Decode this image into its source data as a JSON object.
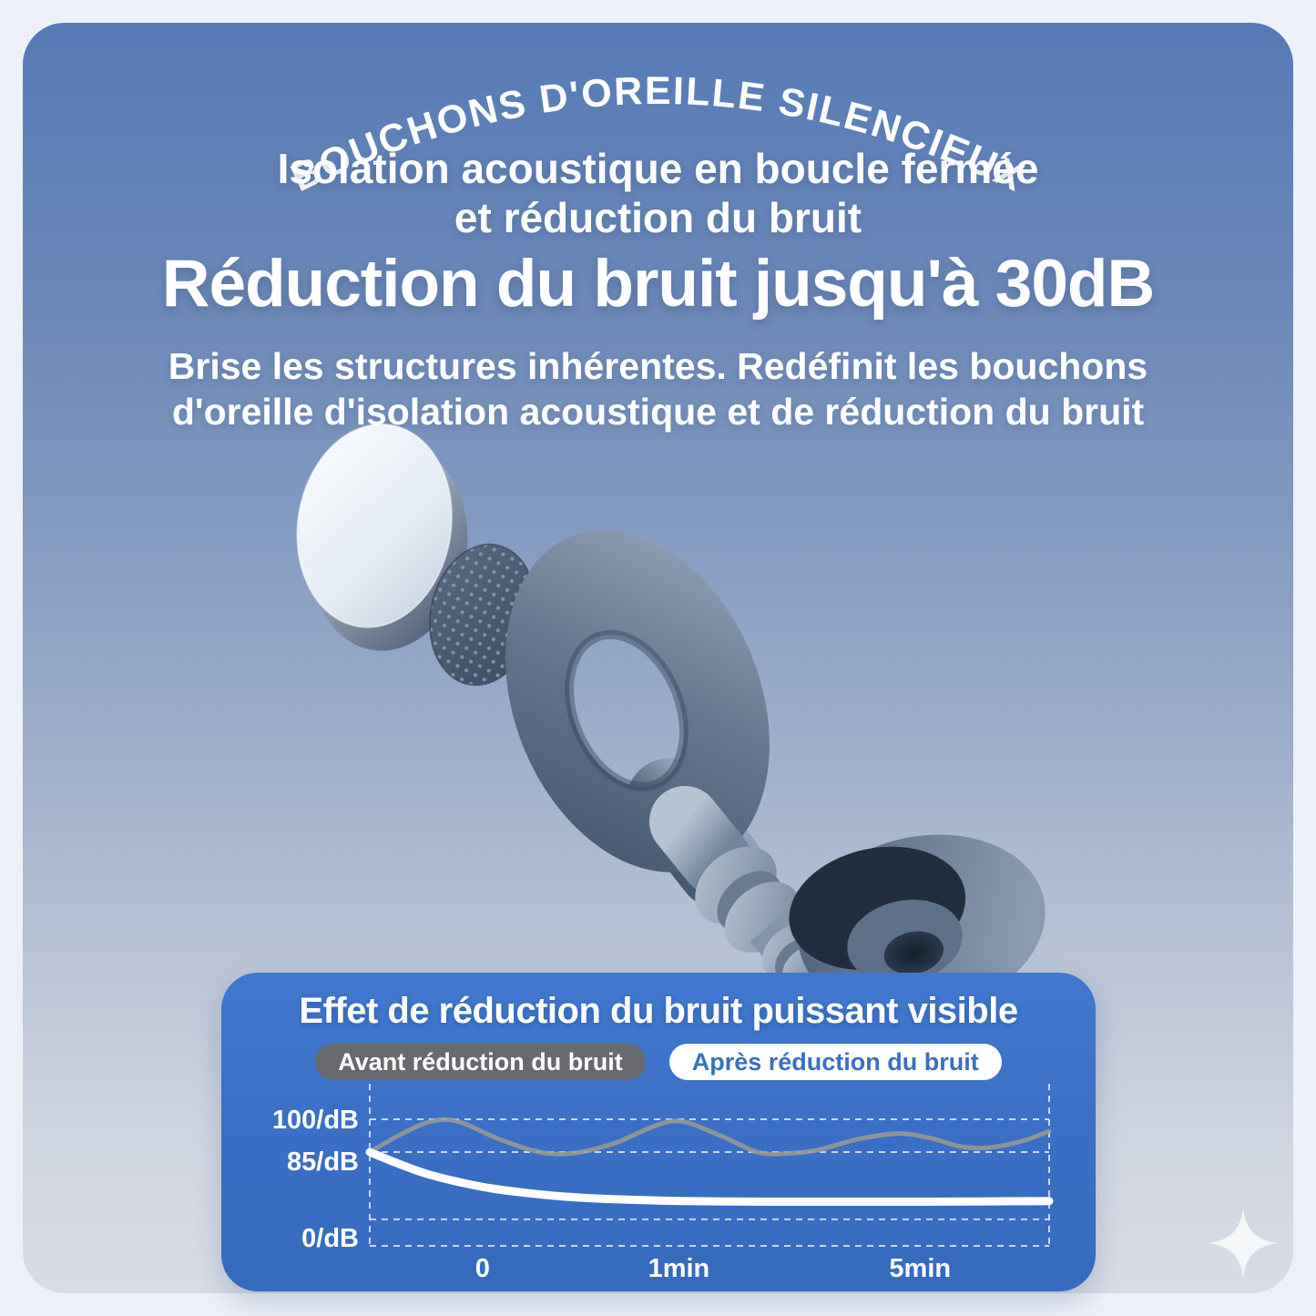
{
  "arc_title": "BOUCHONS D'OREILLE SILENCIEUX",
  "subtitle": {
    "lines": [
      "Isolation acoustique en boucle fermée",
      "et réduction du bruit"
    ]
  },
  "headline": "Réduction du bruit jusqu'à 30dB",
  "lede": {
    "lines": [
      "Brise les structures inhérentes. Redéfinit les bouchons",
      "d'oreille d'isolation acoustique et de réduction du bruit"
    ]
  },
  "product": {
    "parts": [
      "metal-disc",
      "mesh-filter-disc",
      "earplug-loop-body",
      "earplug-stem",
      "ear-tip-cup"
    ]
  },
  "noise_card": {
    "title": "Effet de réduction du bruit puissant visible",
    "legend": [
      {
        "label": "Avant réduction du bruit",
        "style": "gray"
      },
      {
        "label": "Après réduction du bruit",
        "style": "white"
      }
    ]
  },
  "chart_data": {
    "type": "line",
    "title": "Effet de réduction du bruit puissant visible",
    "legend_position": "top",
    "grid": true,
    "x_axis": {
      "ticks": [
        {
          "label": "0",
          "f": 0.166
        },
        {
          "label": "1min",
          "f": 0.455
        },
        {
          "label": "5min",
          "f": 0.81
        }
      ]
    },
    "y_axis": {
      "unit": "dB",
      "ticks": [
        {
          "label": "100/dB",
          "db": 100,
          "dy": 10
        },
        {
          "label": "85/dB",
          "db": 85,
          "dy": 20
        },
        {
          "label": "0/dB",
          "db": 0,
          "dy": 1
        }
      ]
    },
    "gridlines_db": [
      100,
      85,
      24,
      0
    ],
    "series": [
      {
        "name": "Avant réduction du bruit",
        "data_name": "before-noise-line",
        "color": "#9b9b93",
        "opacity": 0.85,
        "width": 5,
        "points": [
          [
            0,
            85
          ],
          [
            0.045,
            93
          ],
          [
            0.09,
            99
          ],
          [
            0.13,
            99
          ],
          [
            0.19,
            91
          ],
          [
            0.25,
            85
          ],
          [
            0.3,
            84
          ],
          [
            0.36,
            89
          ],
          [
            0.42,
            97
          ],
          [
            0.46,
            99
          ],
          [
            0.52,
            92
          ],
          [
            0.57,
            85
          ],
          [
            0.61,
            83.5
          ],
          [
            0.66,
            86
          ],
          [
            0.72,
            91
          ],
          [
            0.78,
            93.5
          ],
          [
            0.83,
            91
          ],
          [
            0.87,
            87.5
          ],
          [
            0.91,
            87
          ],
          [
            0.96,
            90
          ],
          [
            1,
            94.5
          ]
        ]
      },
      {
        "name": "Après réduction du bruit",
        "data_name": "after-noise-line",
        "color": "#ffffff",
        "opacity": 1,
        "width": 9,
        "points": [
          [
            0,
            85
          ],
          [
            0.04,
            75
          ],
          [
            0.08,
            66
          ],
          [
            0.13,
            58
          ],
          [
            0.18,
            52
          ],
          [
            0.23,
            48
          ],
          [
            0.28,
            45
          ],
          [
            0.33,
            43
          ],
          [
            0.38,
            41.8
          ],
          [
            0.45,
            40.8
          ],
          [
            0.52,
            40.2
          ],
          [
            0.6,
            40
          ],
          [
            0.7,
            40
          ],
          [
            0.8,
            40
          ],
          [
            0.9,
            40.3
          ],
          [
            1,
            40.6
          ]
        ]
      }
    ]
  },
  "colors": {
    "frame": "#edf1f7",
    "bg_top": "#567ab6",
    "bg_bottom": "#d8dce5",
    "card_bg": "#3a6ec4",
    "before_pill_bg": "#67696e",
    "after_pill_text": "#3a70c0",
    "before_line": "#9b9b93",
    "after_line": "#ffffff"
  },
  "decor": {
    "sparkle_icon": "four-point-star"
  }
}
